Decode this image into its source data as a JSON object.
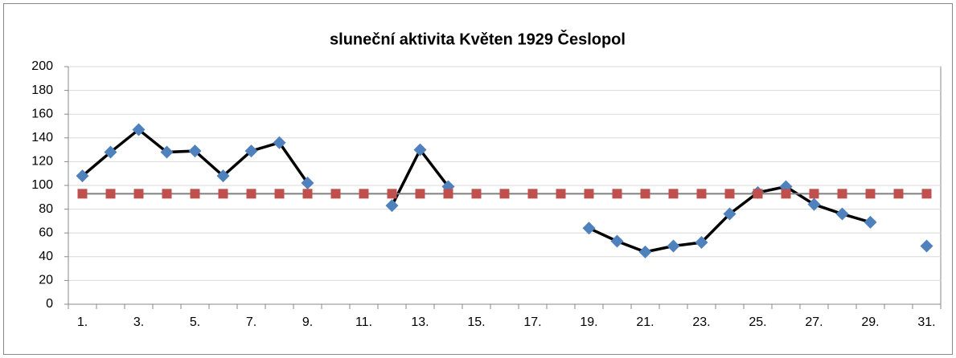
{
  "chart_data": {
    "type": "line",
    "title": "sluneční aktivita Květen 1929 Česlopol",
    "categories": [
      "1.",
      null,
      "3.",
      null,
      "5.",
      null,
      "7.",
      null,
      "9.",
      null,
      "11.",
      null,
      "13.",
      null,
      "15.",
      null,
      "17.",
      null,
      "19.",
      null,
      "21.",
      null,
      "23.",
      null,
      "25.",
      null,
      "27.",
      null,
      "29.",
      null,
      "31."
    ],
    "series": [
      {
        "color": "#4f81bd",
        "line_color": "#000000",
        "marker": "diamond",
        "values": [
          108,
          128,
          147,
          128,
          129,
          108,
          129,
          136,
          102,
          null,
          null,
          83,
          130,
          99,
          null,
          null,
          null,
          null,
          64,
          53,
          44,
          49,
          52,
          76,
          94,
          99,
          84,
          76,
          69,
          null,
          49
        ]
      },
      {
        "color": "#c0504d",
        "line_color": "#7f7f7f",
        "marker": "square",
        "values": [
          93,
          93,
          93,
          93,
          93,
          93,
          93,
          93,
          93,
          93,
          93,
          93,
          93,
          93,
          93,
          93,
          93,
          93,
          93,
          93,
          93,
          93,
          93,
          93,
          93,
          93,
          93,
          93,
          93,
          93,
          93
        ]
      }
    ],
    "ylim": [
      0,
      200
    ],
    "yticks": [
      0,
      20,
      40,
      60,
      80,
      100,
      120,
      140,
      160,
      180,
      200
    ],
    "grid": true
  }
}
